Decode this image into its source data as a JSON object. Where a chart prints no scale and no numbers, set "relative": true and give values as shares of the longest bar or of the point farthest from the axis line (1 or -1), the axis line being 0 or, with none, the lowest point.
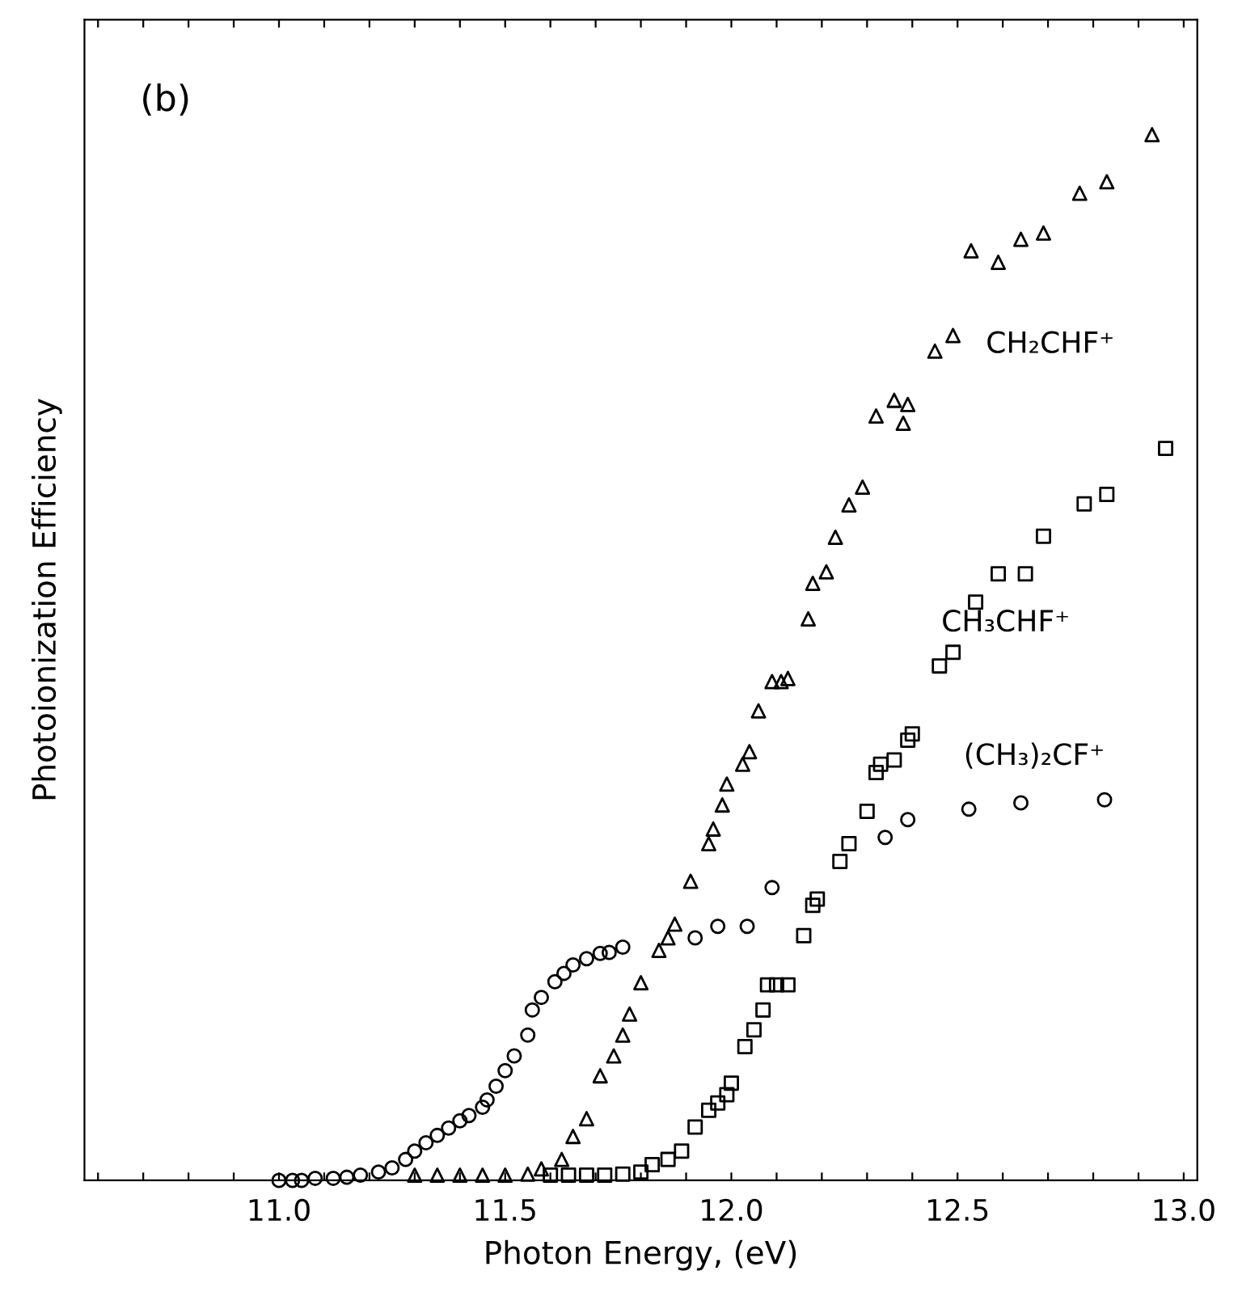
{
  "chart_data": {
    "type": "scatter",
    "relative": true,
    "xlabel": "Photon Energy, (eV)",
    "ylabel": "Photoionization Efficiency",
    "annotations": [
      "(b)"
    ],
    "xlim": [
      10.57,
      13.03
    ],
    "xticks": [
      {
        "value": 10.6,
        "label": null
      },
      {
        "value": 10.7,
        "label": null
      },
      {
        "value": 10.8,
        "label": null
      },
      {
        "value": 10.9,
        "label": null
      },
      {
        "value": 11.0,
        "label": "11.0"
      },
      {
        "value": 11.1,
        "label": null
      },
      {
        "value": 11.2,
        "label": null
      },
      {
        "value": 11.3,
        "label": null
      },
      {
        "value": 11.4,
        "label": null
      },
      {
        "value": 11.5,
        "label": "11.5"
      },
      {
        "value": 11.6,
        "label": null
      },
      {
        "value": 11.7,
        "label": null
      },
      {
        "value": 11.8,
        "label": null
      },
      {
        "value": 11.9,
        "label": null
      },
      {
        "value": 12.0,
        "label": "12.0"
      },
      {
        "value": 12.1,
        "label": null
      },
      {
        "value": 12.2,
        "label": null
      },
      {
        "value": 12.3,
        "label": null
      },
      {
        "value": 12.4,
        "label": null
      },
      {
        "value": 12.5,
        "label": "12.5"
      },
      {
        "value": 12.6,
        "label": null
      },
      {
        "value": 12.7,
        "label": null
      },
      {
        "value": 12.8,
        "label": null
      },
      {
        "value": 12.9,
        "label": null
      },
      {
        "value": 13.0,
        "label": "13.0"
      }
    ],
    "grid": false,
    "legend": false,
    "series": [
      {
        "name": "CH₂CHF⁺",
        "color": "#000000",
        "marker": "triangle",
        "x": [
          11.3,
          11.35,
          11.4,
          11.45,
          11.5,
          11.55,
          11.58,
          11.625,
          11.65,
          11.68,
          11.71,
          11.74,
          11.76,
          11.775,
          11.8,
          11.84,
          11.86,
          11.875,
          11.91,
          11.95,
          11.96,
          11.98,
          11.99,
          12.025,
          12.04,
          12.06,
          12.09,
          12.11,
          12.125,
          12.17,
          12.18,
          12.21,
          12.23,
          12.26,
          12.29,
          12.32,
          12.36,
          12.38,
          12.39,
          12.45,
          12.49,
          12.53,
          12.59,
          12.64,
          12.69,
          12.77,
          12.83,
          12.93
        ],
        "values": [
          0.005,
          0.005,
          0.005,
          0.005,
          0.005,
          0.006,
          0.011,
          0.02,
          0.042,
          0.059,
          0.1,
          0.119,
          0.139,
          0.159,
          0.189,
          0.22,
          0.232,
          0.245,
          0.286,
          0.322,
          0.336,
          0.359,
          0.379,
          0.398,
          0.41,
          0.449,
          0.477,
          0.477,
          0.48,
          0.537,
          0.571,
          0.582,
          0.615,
          0.646,
          0.663,
          0.731,
          0.746,
          0.724,
          0.742,
          0.793,
          0.808,
          0.889,
          0.878,
          0.9,
          0.906,
          0.944,
          0.955,
          1.0
        ]
      },
      {
        "name": "CH₃CHF⁺",
        "color": "#000000",
        "marker": "square",
        "x": [
          11.6,
          11.64,
          11.68,
          11.72,
          11.76,
          11.8,
          11.825,
          11.86,
          11.89,
          11.92,
          11.95,
          11.97,
          11.99,
          12.0,
          12.03,
          12.05,
          12.07,
          12.08,
          12.1,
          12.125,
          12.16,
          12.18,
          12.19,
          12.24,
          12.26,
          12.3,
          12.32,
          12.33,
          12.36,
          12.39,
          12.4,
          12.46,
          12.49,
          12.54,
          12.59,
          12.65,
          12.69,
          12.78,
          12.83,
          12.96
        ],
        "values": [
          0.005,
          0.005,
          0.005,
          0.005,
          0.006,
          0.008,
          0.015,
          0.02,
          0.028,
          0.051,
          0.067,
          0.074,
          0.082,
          0.093,
          0.128,
          0.144,
          0.163,
          0.187,
          0.187,
          0.187,
          0.234,
          0.263,
          0.269,
          0.305,
          0.322,
          0.353,
          0.39,
          0.398,
          0.402,
          0.421,
          0.427,
          0.492,
          0.505,
          0.553,
          0.58,
          0.58,
          0.616,
          0.647,
          0.656,
          0.7
        ]
      },
      {
        "name": "(CH₃)₂CF⁺",
        "color": "#000000",
        "marker": "circle",
        "x": [
          11.0,
          11.03,
          11.05,
          11.08,
          11.12,
          11.15,
          11.18,
          11.22,
          11.25,
          11.28,
          11.3,
          11.325,
          11.35,
          11.375,
          11.4,
          11.42,
          11.45,
          11.46,
          11.48,
          11.5,
          11.52,
          11.55,
          11.56,
          11.58,
          11.61,
          11.63,
          11.65,
          11.68,
          11.71,
          11.73,
          11.76,
          11.92,
          11.97,
          12.035,
          12.09,
          12.34,
          12.39,
          12.525,
          12.64,
          12.825
        ],
        "values": [
          0.0,
          0.0,
          0.0,
          0.002,
          0.002,
          0.003,
          0.005,
          0.008,
          0.012,
          0.02,
          0.028,
          0.036,
          0.043,
          0.05,
          0.057,
          0.062,
          0.07,
          0.077,
          0.09,
          0.105,
          0.119,
          0.139,
          0.163,
          0.175,
          0.19,
          0.198,
          0.206,
          0.212,
          0.217,
          0.218,
          0.223,
          0.232,
          0.243,
          0.243,
          0.28,
          0.328,
          0.345,
          0.355,
          0.361,
          0.364
        ]
      }
    ]
  }
}
